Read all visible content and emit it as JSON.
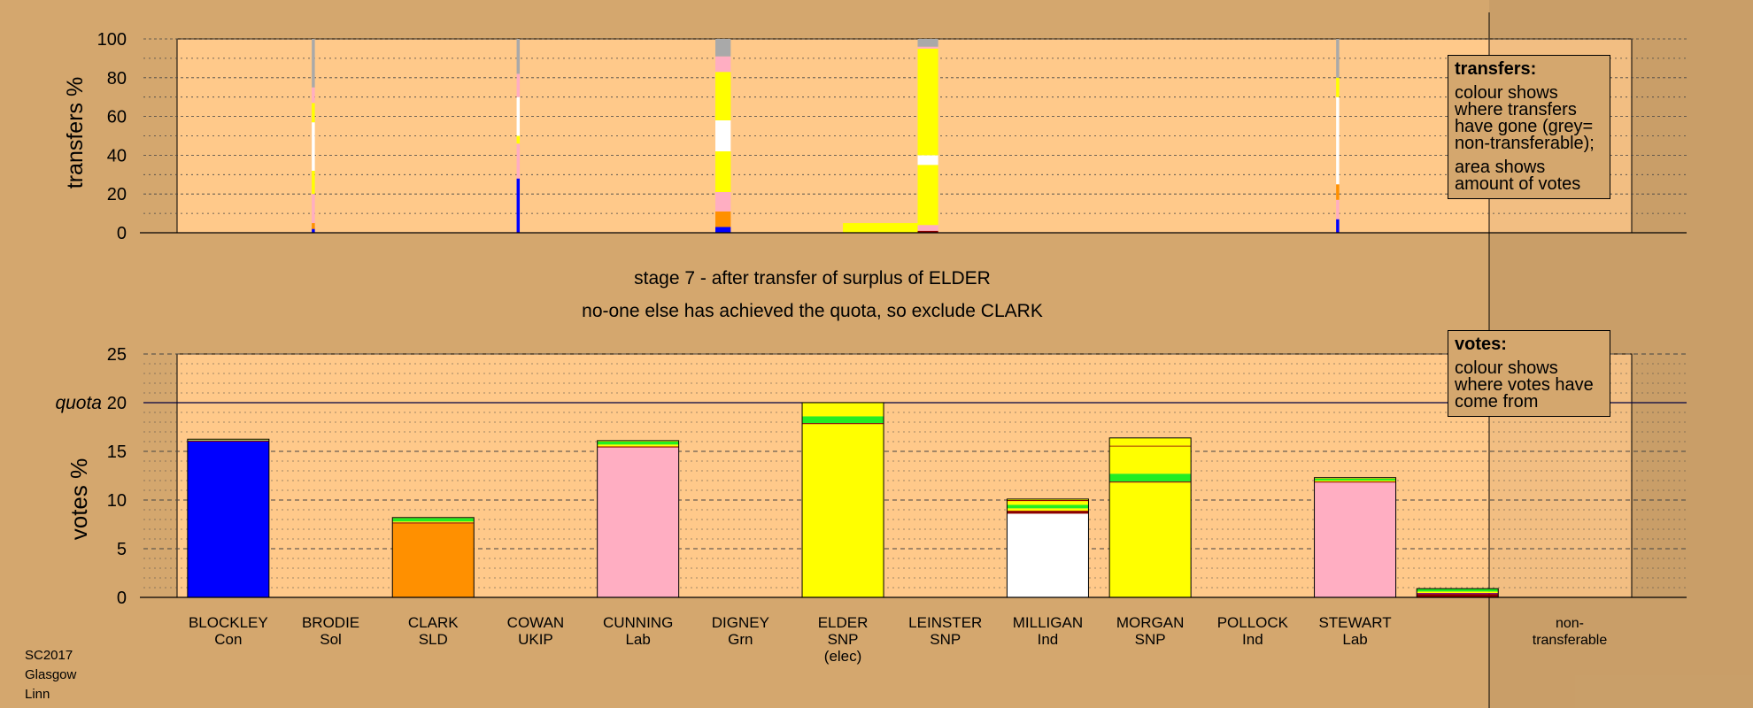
{
  "colors": {
    "page_bg": "#d4a76e",
    "plot_bg": "#ffc98a",
    "Con": "#0000ff",
    "SLD": "#ff9000",
    "Lab": "#ffaec2",
    "SNP": "#ffff00",
    "Ind": "#ffffff",
    "Grn": "#22ee22",
    "nontransferable": "#a9a9a9",
    "UKIP": "#800080",
    "Sol": "#8b0000"
  },
  "stage_title": "stage 7 - after transfer of surplus of ELDER",
  "stage_subtitle": "no-one else has achieved the quota, so exclude CLARK",
  "transfers_box": {
    "heading": "transfers:",
    "line1": "colour shows where transfers have gone (grey= non-transferable);",
    "line2": "area shows amount of votes"
  },
  "votes_box": {
    "heading": "votes:",
    "line1": "colour shows where votes have come from"
  },
  "source_note": {
    "line1": "SC2017",
    "line2": "Glasgow",
    "line3": "Linn"
  },
  "chart_data": [
    {
      "type": "bar",
      "name": "transfers",
      "ylabel": "transfers %",
      "ylim": [
        0,
        100
      ],
      "yticks": [
        "0",
        "20",
        "40",
        "60",
        "80",
        "100"
      ],
      "transfer_bars": [
        {
          "slot": 1.33,
          "width": 0.03,
          "height": 100,
          "segments": [
            {
              "c": "Con",
              "v": 2
            },
            {
              "c": "SLD",
              "v": 3
            },
            {
              "c": "Lab",
              "v": 15
            },
            {
              "c": "SNP",
              "v": 12
            },
            {
              "c": "Ind",
              "v": 25
            },
            {
              "c": "SNP",
              "v": 10
            },
            {
              "c": "Lab",
              "v": 8
            },
            {
              "c": "nontransferable",
              "v": 25
            }
          ]
        },
        {
          "slot": 3.33,
          "width": 0.03,
          "height": 100,
          "segments": [
            {
              "c": "Con",
              "v": 28
            },
            {
              "c": "Lab",
              "v": 18
            },
            {
              "c": "SNP",
              "v": 4
            },
            {
              "c": "Ind",
              "v": 20
            },
            {
              "c": "Lab",
              "v": 12
            },
            {
              "c": "nontransferable",
              "v": 18
            }
          ]
        },
        {
          "slot": 5.33,
          "width": 0.15,
          "height": 100,
          "segments": [
            {
              "c": "Con",
              "v": 3
            },
            {
              "c": "SLD",
              "v": 8
            },
            {
              "c": "Lab",
              "v": 10
            },
            {
              "c": "SNP",
              "v": 21
            },
            {
              "c": "Ind",
              "v": 16
            },
            {
              "c": "SNP",
              "v": 25
            },
            {
              "c": "Lab",
              "v": 8
            },
            {
              "c": "nontransferable",
              "v": 9
            }
          ]
        },
        {
          "slot": 6.5,
          "width": 0.75,
          "height": 5,
          "segments": [
            {
              "c": "SNP",
              "v": 5
            }
          ]
        },
        {
          "slot": 7.33,
          "width": 0.2,
          "height": 100,
          "segments": [
            {
              "c": "Sol",
              "v": 1
            },
            {
              "c": "Lab",
              "v": 3
            },
            {
              "c": "SNP",
              "v": 31
            },
            {
              "c": "Ind",
              "v": 5
            },
            {
              "c": "SNP",
              "v": 55
            },
            {
              "c": "Lab",
              "v": 1
            },
            {
              "c": "nontransferable",
              "v": 4
            }
          ]
        },
        {
          "slot": 11.33,
          "width": 0.03,
          "height": 100,
          "segments": [
            {
              "c": "Con",
              "v": 7
            },
            {
              "c": "Lab",
              "v": 10
            },
            {
              "c": "SLD",
              "v": 8
            },
            {
              "c": "Ind",
              "v": 45
            },
            {
              "c": "SNP",
              "v": 10
            },
            {
              "c": "nontransferable",
              "v": 20
            }
          ]
        }
      ]
    },
    {
      "type": "bar",
      "name": "votes",
      "ylabel": "votes %",
      "ylim": [
        0,
        25
      ],
      "yticks": [
        "0",
        "5",
        "10",
        "15",
        "20",
        "25"
      ],
      "quota_label": "quota",
      "quota": 20,
      "categories": [
        {
          "name": "BLOCKLEY",
          "sub": "Con",
          "sub2": ""
        },
        {
          "name": "BRODIE",
          "sub": "Sol",
          "sub2": ""
        },
        {
          "name": "CLARK",
          "sub": "SLD",
          "sub2": ""
        },
        {
          "name": "COWAN",
          "sub": "UKIP",
          "sub2": ""
        },
        {
          "name": "CUNNING",
          "sub": "Lab",
          "sub2": ""
        },
        {
          "name": "DIGNEY",
          "sub": "Grn",
          "sub2": ""
        },
        {
          "name": "ELDER",
          "sub": "SNP",
          "sub2": "(elec)"
        },
        {
          "name": "LEINSTER",
          "sub": "SNP",
          "sub2": ""
        },
        {
          "name": "MILLIGAN",
          "sub": "Ind",
          "sub2": ""
        },
        {
          "name": "MORGAN",
          "sub": "SNP",
          "sub2": ""
        },
        {
          "name": "POLLOCK",
          "sub": "Ind",
          "sub2": ""
        },
        {
          "name": "STEWART",
          "sub": "Lab",
          "sub2": ""
        },
        {
          "name": "non-",
          "sub": "transferable",
          "sub2": ""
        }
      ],
      "stacks": [
        {
          "i": 0,
          "segments": [
            {
              "c": "Con",
              "v": 16.0
            },
            {
              "c": "Sol",
              "v": 0.1
            },
            {
              "c": "Grn",
              "v": 0.05
            },
            {
              "c": "Lab",
              "v": 0.05
            },
            {
              "c": "SNP",
              "v": 0.05
            }
          ]
        },
        {
          "i": 2,
          "segments": [
            {
              "c": "SLD",
              "v": 7.6
            },
            {
              "c": "Sol",
              "v": 0.1
            },
            {
              "c": "SNP",
              "v": 0.1
            },
            {
              "c": "Grn",
              "v": 0.35
            },
            {
              "c": "SNP",
              "v": 0.05
            }
          ]
        },
        {
          "i": 4,
          "segments": [
            {
              "c": "Lab",
              "v": 15.4
            },
            {
              "c": "Sol",
              "v": 0.1
            },
            {
              "c": "SNP",
              "v": 0.2
            },
            {
              "c": "Grn",
              "v": 0.3
            },
            {
              "c": "SNP",
              "v": 0.1
            }
          ]
        },
        {
          "i": 6,
          "segments": [
            {
              "c": "SNP",
              "v": 17.8
            },
            {
              "c": "Sol",
              "v": 0.1
            },
            {
              "c": "Grn",
              "v": 0.7
            },
            {
              "c": "SNP",
              "v": 1.4
            }
          ]
        },
        {
          "i": 8,
          "segments": [
            {
              "c": "Ind",
              "v": 8.6
            },
            {
              "c": "Sol",
              "v": 0.3
            },
            {
              "c": "SNP",
              "v": 0.25
            },
            {
              "c": "Grn",
              "v": 0.35
            },
            {
              "c": "SNP",
              "v": 0.4
            },
            {
              "c": "Sol",
              "v": 0.1
            },
            {
              "c": "SNP",
              "v": 0.1
            }
          ]
        },
        {
          "i": 9,
          "segments": [
            {
              "c": "SNP",
              "v": 11.8
            },
            {
              "c": "Sol",
              "v": 0.1
            },
            {
              "c": "Grn",
              "v": 0.8
            },
            {
              "c": "SNP",
              "v": 2.8
            },
            {
              "c": "Sol",
              "v": 0.08
            },
            {
              "c": "SNP",
              "v": 0.8
            }
          ]
        },
        {
          "i": 11,
          "segments": [
            {
              "c": "Lab",
              "v": 11.8
            },
            {
              "c": "Sol",
              "v": 0.1
            },
            {
              "c": "SNP",
              "v": 0.1
            },
            {
              "c": "Grn",
              "v": 0.2
            },
            {
              "c": "SNP",
              "v": 0.1
            }
          ]
        },
        {
          "i": 12,
          "segments": [
            {
              "c": "Sol",
              "v": 0.35
            },
            {
              "c": "UKIP",
              "v": 0.1
            },
            {
              "c": "SNP",
              "v": 0.15
            },
            {
              "c": "Grn",
              "v": 0.3
            }
          ]
        }
      ]
    }
  ]
}
